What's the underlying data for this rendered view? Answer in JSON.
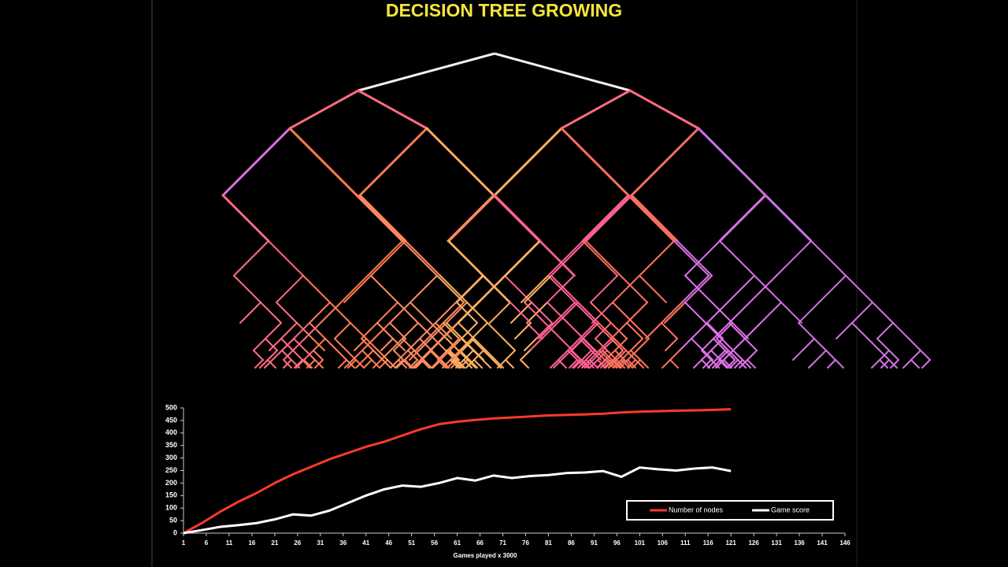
{
  "chart_data": {
    "type": "line",
    "title": "DECISION TREE GROWING",
    "x_label": "Games played x 3000",
    "x": [
      1,
      5,
      9,
      13,
      17,
      21,
      25,
      29,
      33,
      37,
      41,
      45,
      49,
      53,
      57,
      61,
      65,
      69,
      73,
      77,
      81,
      85,
      89,
      93,
      97,
      101,
      105,
      109,
      113,
      117,
      121
    ],
    "series": [
      {
        "name": "Number of nodes",
        "color": "#ff3a2a",
        "values": [
          0,
          40,
          85,
          125,
          160,
          200,
          235,
          265,
          295,
          320,
          345,
          365,
          390,
          415,
          435,
          445,
          452,
          458,
          462,
          466,
          470,
          472,
          474,
          477,
          482,
          485,
          487,
          489,
          490,
          492,
          495
        ]
      },
      {
        "name": "Game score",
        "color": "#ffffff",
        "values": [
          0,
          12,
          25,
          32,
          40,
          55,
          75,
          70,
          90,
          120,
          150,
          175,
          190,
          185,
          200,
          220,
          210,
          230,
          220,
          228,
          232,
          240,
          242,
          248,
          225,
          262,
          255,
          250,
          258,
          262,
          248
        ]
      }
    ],
    "xlim": [
      1,
      146
    ],
    "xticks": [
      1,
      6,
      11,
      16,
      21,
      26,
      31,
      36,
      41,
      46,
      51,
      56,
      61,
      66,
      71,
      76,
      81,
      86,
      91,
      96,
      101,
      106,
      111,
      116,
      121,
      126,
      131,
      136,
      141,
      146
    ],
    "ylim": [
      0,
      500
    ],
    "yticks": [
      0,
      50,
      100,
      150,
      200,
      250,
      300,
      350,
      400,
      450,
      500
    ],
    "grid": false
  }
}
